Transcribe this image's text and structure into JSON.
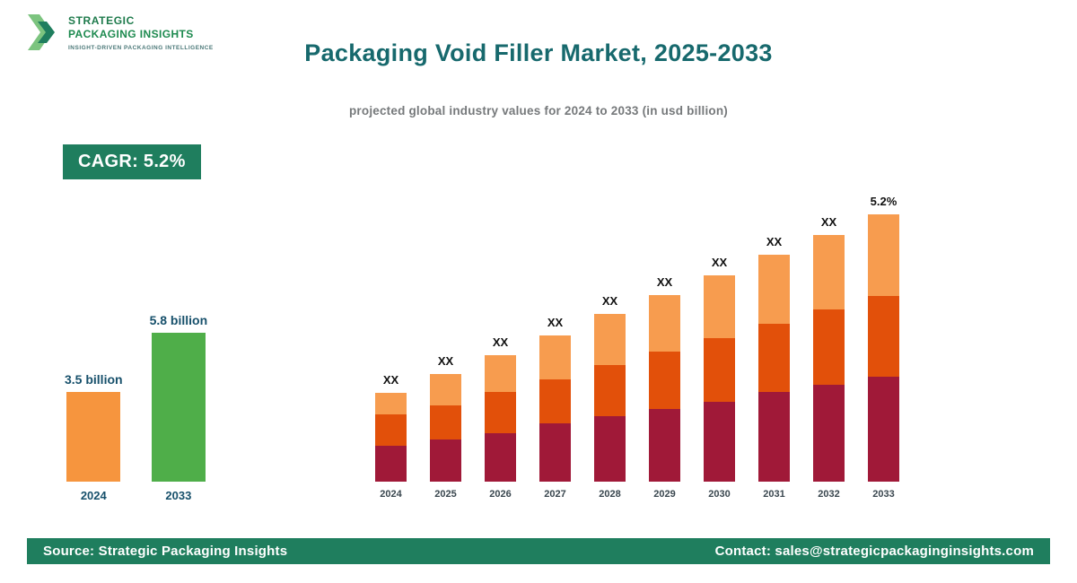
{
  "header": {
    "title": "Packaging Void Filler Market, 2025-2033",
    "subtitle": "projected global industry values for 2024 to 2033 (in usd billion)"
  },
  "logo": {
    "name_line1": "STRATEGIC",
    "name_line2": "PACKAGING INSIGHTS",
    "tagline": "INSIGHT-DRIVEN PACKAGING INTELLIGENCE",
    "chevron_icon": "double-chevron-right",
    "chevron_colors": [
      "#7cc47f",
      "#1f7e5e"
    ]
  },
  "badges": {
    "cagr": "CAGR: 5.2%"
  },
  "footer": {
    "source": "Source: Strategic Packaging Insights",
    "contact": "Contact: sales@strategicpackaginginsights.com"
  },
  "colors": {
    "brand_green": "#1f7e5e",
    "title_teal": "#17696d",
    "label_teal": "#17506b",
    "stack_bottom": "#a01938",
    "stack_middle": "#e2500a",
    "stack_top": "#f79c4f",
    "mini_bar_2024": "#f6953e",
    "mini_bar_2033": "#4fae49"
  },
  "chart_data": [
    {
      "type": "bar",
      "name": "growth-comparison",
      "categories": [
        "2024",
        "2033"
      ],
      "values": [
        3.5,
        5.8
      ],
      "value_labels": [
        "3.5 billion",
        "5.8 billion"
      ],
      "bar_colors": [
        "#f6953e",
        "#4fae49"
      ],
      "unit": "usd billion",
      "ylim": [
        0,
        6
      ],
      "grid": false,
      "axes": "none",
      "legend": "none"
    },
    {
      "type": "bar",
      "subtype": "stacked",
      "name": "market-forecast-2024-2033",
      "categories": [
        "2024",
        "2025",
        "2026",
        "2027",
        "2028",
        "2029",
        "2030",
        "2031",
        "2032",
        "2033"
      ],
      "series": [
        {
          "name": "segment-bottom",
          "color": "#a01938",
          "values": [
            40,
            47,
            54,
            65,
            73,
            81,
            89,
            100,
            108,
            117
          ]
        },
        {
          "name": "segment-middle",
          "color": "#e2500a",
          "values": [
            35,
            38,
            46,
            49,
            57,
            64,
            71,
            76,
            84,
            90
          ]
        },
        {
          "name": "segment-top",
          "color": "#f79c4f",
          "values": [
            24,
            35,
            41,
            49,
            57,
            63,
            70,
            77,
            83,
            91
          ]
        }
      ],
      "bar_labels": [
        "XX",
        "XX",
        "XX",
        "XX",
        "XX",
        "XX",
        "XX",
        "XX",
        "XX",
        "5.2%"
      ],
      "note": "actual segment values hidden in source (shown as XX); series values are relative heights",
      "grid": false,
      "axes": "none",
      "legend": "none"
    }
  ]
}
